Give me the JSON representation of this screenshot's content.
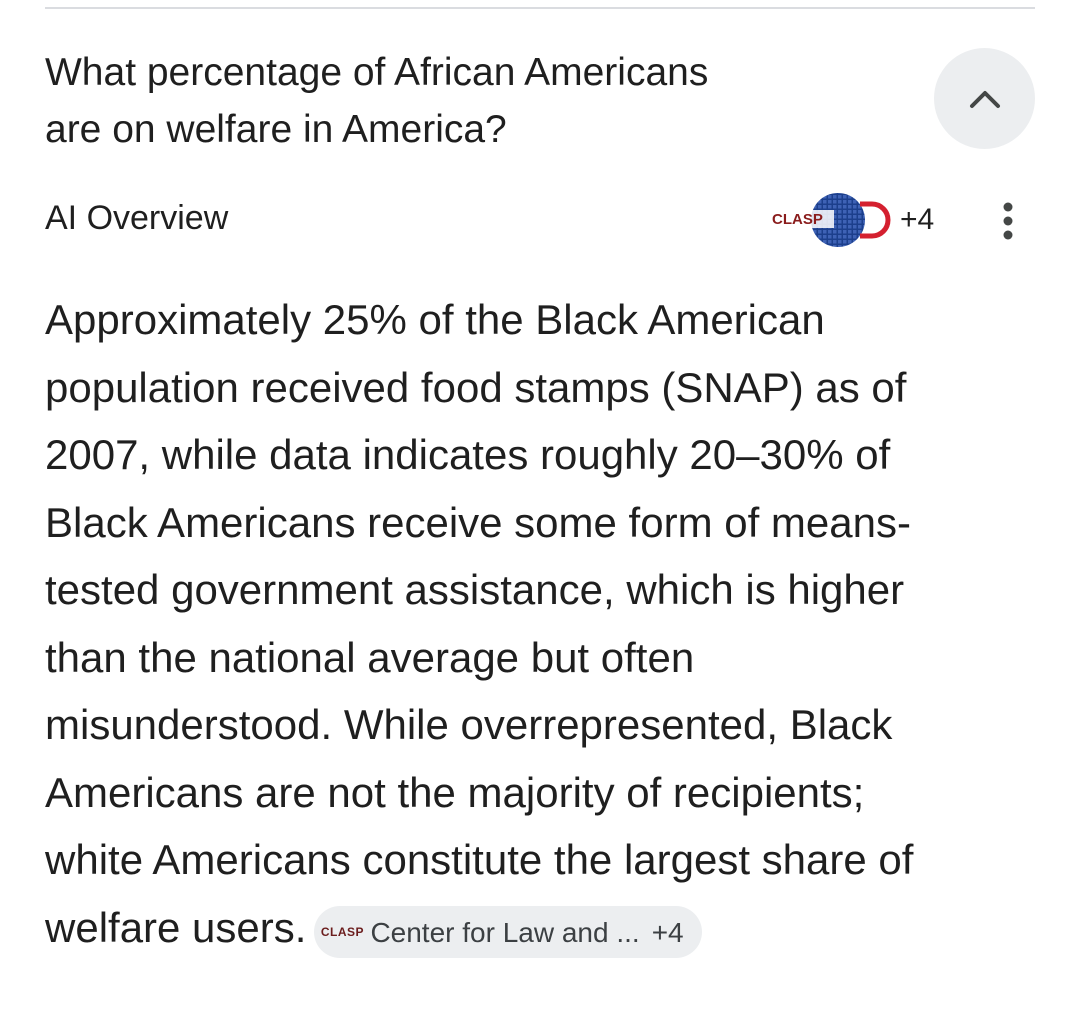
{
  "question": {
    "line1": "What percentage of African Americans",
    "line2": "are on welfare in America?"
  },
  "overview": {
    "label": "AI Overview",
    "sources_logo_text": "CLASP",
    "sources_extra_count": "+4"
  },
  "answer": {
    "lines": [
      "Approximately 25% of the Black American",
      "population received food stamps (SNAP) as of",
      "2007, while data indicates roughly 20–30% of",
      "Black Americans receive some form of means-",
      "tested government assistance, which is higher",
      "than the national average but often",
      "misunderstood. While overrepresented, Black",
      "Americans are not the majority of recipients;",
      "white Americans constitute the largest share of",
      "welfare users."
    ]
  },
  "citation": {
    "logo_text": "CLASP",
    "source_name": "Center for Law and ...",
    "extra_count": "+4"
  },
  "colors": {
    "text": "#1f1f1f",
    "chip_bg": "#eceef0",
    "clasp_blue": "#1c3f8c",
    "clasp_red": "#d4202f"
  },
  "icons": {
    "collapse": "chevron-up-icon",
    "more": "more-vert-icon"
  }
}
